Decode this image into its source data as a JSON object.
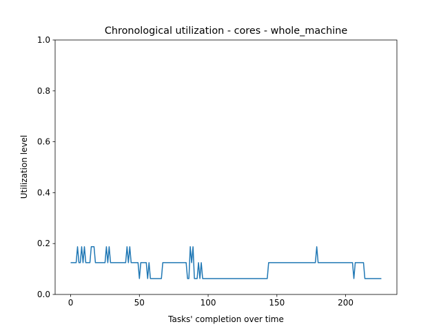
{
  "chart_data": {
    "type": "line",
    "title": "Chronological utilization - cores - whole_machine",
    "xlabel": "Tasks' completion over time",
    "ylabel": "Utilization level",
    "xlim": [
      -11.3,
      237.3
    ],
    "ylim": [
      0,
      1.0
    ],
    "xticks": [
      0,
      50,
      100,
      150,
      200
    ],
    "xtick_labels": [
      "0",
      "50",
      "100",
      "150",
      "200"
    ],
    "yticks": [
      0.0,
      0.2,
      0.4,
      0.6,
      0.8,
      1.0
    ],
    "ytick_labels": [
      "0.0",
      "0.2",
      "0.4",
      "0.6",
      "0.8",
      "1.0"
    ],
    "grid": false,
    "series": [
      {
        "color": "#1f77b4",
        "points": [
          [
            0,
            0.125
          ],
          [
            4,
            0.125
          ],
          [
            5,
            0.1875
          ],
          [
            6,
            0.125
          ],
          [
            7,
            0.125
          ],
          [
            8,
            0.1875
          ],
          [
            9,
            0.125
          ],
          [
            10,
            0.1875
          ],
          [
            11,
            0.125
          ],
          [
            14,
            0.125
          ],
          [
            15,
            0.1875
          ],
          [
            17,
            0.1875
          ],
          [
            18,
            0.125
          ],
          [
            25,
            0.125
          ],
          [
            26,
            0.1875
          ],
          [
            27,
            0.125
          ],
          [
            28,
            0.1875
          ],
          [
            29,
            0.125
          ],
          [
            40,
            0.125
          ],
          [
            41,
            0.1875
          ],
          [
            42,
            0.125
          ],
          [
            43,
            0.1875
          ],
          [
            44,
            0.125
          ],
          [
            49,
            0.125
          ],
          [
            50,
            0.0625
          ],
          [
            51,
            0.125
          ],
          [
            55,
            0.125
          ],
          [
            56,
            0.0625
          ],
          [
            57,
            0.125
          ],
          [
            58,
            0.0625
          ],
          [
            66,
            0.0625
          ],
          [
            67,
            0.125
          ],
          [
            84,
            0.125
          ],
          [
            85,
            0.0625
          ],
          [
            86,
            0.0625
          ],
          [
            87,
            0.1875
          ],
          [
            88,
            0.125
          ],
          [
            89,
            0.1875
          ],
          [
            90,
            0.0625
          ],
          [
            92,
            0.0625
          ],
          [
            93,
            0.125
          ],
          [
            94,
            0.0625
          ],
          [
            95,
            0.125
          ],
          [
            96,
            0.0625
          ],
          [
            143,
            0.0625
          ],
          [
            144,
            0.125
          ],
          [
            178,
            0.125
          ],
          [
            179,
            0.1875
          ],
          [
            180,
            0.125
          ],
          [
            205,
            0.125
          ],
          [
            206,
            0.0625
          ],
          [
            207,
            0.125
          ],
          [
            213,
            0.125
          ],
          [
            214,
            0.0625
          ],
          [
            226,
            0.0625
          ]
        ]
      }
    ]
  }
}
